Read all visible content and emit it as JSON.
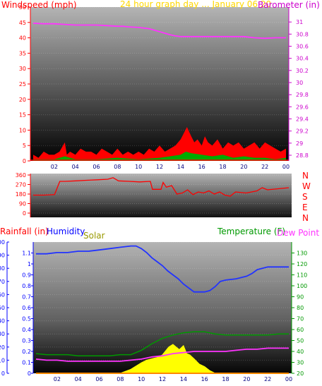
{
  "colors": {
    "wind": "#ff0000",
    "gust_fill": "#ff0000",
    "avg_fill": "#00aa00",
    "baro": "#ff33ff",
    "dir": "#ff0000",
    "humidity": "#2233ff",
    "temperature": "#009900",
    "dewpoint": "#ff33ff",
    "solar": "#ffff00",
    "rainfall": "#ff8800",
    "axis_left": "#ff0000",
    "axis_baro": "#cc00cc",
    "axis_rain": "#0000ff",
    "axis_temp": "#009900",
    "title": "#ffd700"
  },
  "chart_data": [
    {
      "type": "line",
      "title": "24 hour graph day ... January 06 20",
      "ylabel": "Windspeed (mph)",
      "y2label": "Barometer (in)",
      "x_ticks": [
        "02",
        "04",
        "06",
        "08",
        "10",
        "12",
        "14",
        "16",
        "18",
        "20",
        "22",
        "00"
      ],
      "ylim": [
        0,
        50
      ],
      "y_ticks": [
        "0",
        "5",
        "10",
        "15",
        "20",
        "25",
        "30",
        "35",
        "40",
        "45",
        "50"
      ],
      "y2lim": [
        28.8,
        31.2
      ],
      "y2_ticks": [
        "28.8",
        "29",
        "29.2",
        "29.4",
        "29.6",
        "29.8",
        "30",
        "30.2",
        "30.4",
        "30.6",
        "30.8",
        "31"
      ],
      "series": [
        {
          "name": "Barometer",
          "x": [
            0,
            1,
            2,
            3,
            4,
            5,
            6,
            7,
            8,
            8.5,
            9,
            10,
            11,
            12,
            13,
            13.5,
            14,
            15,
            16,
            17,
            18,
            19,
            20,
            21,
            22,
            23,
            24
          ],
          "values": [
            30.98,
            30.97,
            30.97,
            30.96,
            30.95,
            30.95,
            30.95,
            30.94,
            30.93,
            30.93,
            30.92,
            30.91,
            30.89,
            30.84,
            30.79,
            30.77,
            30.76,
            30.76,
            30.76,
            30.76,
            30.76,
            30.76,
            30.76,
            30.74,
            30.73,
            30.74,
            30.74
          ]
        },
        {
          "name": "Gust",
          "x": [
            0,
            0.5,
            1,
            1.5,
            2,
            2.5,
            3,
            3.2,
            3.5,
            4,
            4.5,
            5,
            5.5,
            6,
            6.5,
            7,
            7.5,
            8,
            8.5,
            9,
            9.5,
            10,
            10.5,
            11,
            11.5,
            12,
            12.5,
            13,
            13.5,
            14,
            14.3,
            14.6,
            15,
            15.3,
            15.6,
            16,
            16.3,
            16.6,
            17,
            17.5,
            18,
            18.5,
            19,
            19.5,
            20,
            20.5,
            21,
            21.5,
            22,
            22.5,
            23,
            23.5,
            24
          ],
          "values": [
            2,
            1,
            3,
            2,
            2,
            3,
            6,
            2,
            3,
            2,
            4,
            3,
            3,
            2,
            4,
            3,
            2,
            4,
            2,
            3,
            2,
            3,
            2,
            4,
            3,
            5,
            3,
            4,
            5,
            7,
            9,
            11,
            8,
            6,
            7,
            5,
            8,
            6,
            5,
            7,
            4,
            6,
            5,
            6,
            4,
            5,
            6,
            4,
            6,
            5,
            4,
            3,
            4
          ]
        },
        {
          "name": "Average",
          "x": [
            0,
            2,
            3,
            4,
            6,
            8,
            10,
            12,
            13,
            14,
            14.5,
            15,
            16,
            17,
            18,
            19,
            20,
            21,
            22,
            23,
            24
          ],
          "values": [
            0.5,
            0.5,
            1.5,
            0.5,
            0.5,
            1,
            0.5,
            1,
            1.5,
            2,
            3,
            2.5,
            2,
            1.5,
            2,
            1,
            1.5,
            1,
            1,
            0.5,
            1
          ]
        }
      ]
    },
    {
      "type": "line",
      "ylabel": "",
      "compass": [
        "N",
        "W",
        "S",
        "E",
        "N"
      ],
      "ylim": [
        0,
        360
      ],
      "y_ticks": [
        "0",
        "90",
        "180",
        "270",
        "360"
      ],
      "x_ticks": [
        "02",
        "04",
        "06",
        "08",
        "10",
        "12",
        "14",
        "16",
        "18",
        "20",
        "22",
        "00"
      ],
      "series": [
        {
          "name": "Wind direction",
          "x": [
            0,
            1,
            2,
            2.5,
            3,
            4,
            5,
            6,
            7,
            7.5,
            8,
            9,
            10,
            11,
            11.2,
            12,
            12.2,
            12.5,
            13,
            13.5,
            14,
            14.5,
            15,
            15.5,
            16,
            16.5,
            17,
            17.5,
            18,
            18.5,
            19,
            20,
            21,
            21.5,
            22,
            23,
            24
          ],
          "values": [
            170,
            170,
            175,
            300,
            300,
            305,
            310,
            315,
            320,
            335,
            305,
            300,
            295,
            300,
            225,
            225,
            290,
            245,
            260,
            180,
            190,
            220,
            175,
            200,
            190,
            210,
            180,
            200,
            170,
            160,
            200,
            190,
            210,
            240,
            220,
            230,
            240
          ]
        }
      ]
    },
    {
      "type": "line",
      "ylabel": "Rainfall (in)",
      "ylabel2": "Humidity",
      "ylabel3": "Solar",
      "y2label": "Temperature (F)",
      "y2label2": "Dew Point (",
      "x_ticks": [
        "02",
        "04",
        "06",
        "08",
        "10",
        "12",
        "14",
        "16",
        "18",
        "20",
        "22",
        "00"
      ],
      "hum_lim": [
        0,
        100
      ],
      "hum_ticks": [
        "0",
        "10",
        "20",
        "30",
        "40",
        "50",
        "60",
        "70",
        "80",
        "90",
        "100"
      ],
      "rain_lim": [
        0,
        1.2
      ],
      "rain_ticks": [
        "0",
        "0.1",
        "0.2",
        "0.3",
        "0.4",
        "0.5",
        "0.6",
        "0.7",
        "0.8",
        "0.9",
        "1",
        "1.1"
      ],
      "temp_lim": [
        20,
        140
      ],
      "temp_ticks": [
        "20",
        "30",
        "40",
        "50",
        "60",
        "70",
        "80",
        "90",
        "100",
        "110",
        "120",
        "130"
      ],
      "series": [
        {
          "name": "Humidity",
          "x": [
            0,
            1,
            2,
            3,
            4,
            5,
            6,
            7,
            8,
            9,
            9.5,
            10,
            10.5,
            11,
            11.5,
            12,
            12.5,
            13,
            13.5,
            14,
            14.5,
            15,
            15.5,
            16,
            16.5,
            17,
            17.5,
            18,
            19,
            20,
            20.5,
            21,
            22,
            23,
            24
          ],
          "values": [
            91,
            91,
            92,
            92,
            93,
            93,
            94,
            95,
            96,
            97,
            97,
            95,
            92,
            88,
            85,
            82,
            78,
            75,
            72,
            68,
            65,
            62,
            62,
            62,
            63,
            66,
            70,
            71,
            72,
            74,
            76,
            79,
            81,
            81,
            81
          ]
        },
        {
          "name": "Temperature",
          "x": [
            0,
            1,
            2,
            3,
            4,
            5,
            6,
            7,
            8,
            9,
            10,
            11,
            12,
            13,
            14,
            15,
            16,
            17,
            18,
            19,
            20,
            21,
            22,
            23,
            24
          ],
          "values": [
            38,
            37,
            37,
            37,
            36,
            36,
            36,
            36,
            37,
            37,
            41,
            47,
            52,
            55,
            57,
            58,
            58,
            56,
            55,
            55,
            55,
            55,
            55,
            56,
            56
          ]
        },
        {
          "name": "Dew Point",
          "x": [
            0,
            1,
            2,
            3,
            4,
            5,
            6,
            7,
            8,
            9,
            10,
            11,
            12,
            13,
            14,
            15,
            16,
            17,
            18,
            19,
            20,
            21,
            22,
            23,
            24
          ],
          "values": [
            33,
            32,
            32,
            31,
            31,
            31,
            31,
            31,
            31,
            32,
            33,
            35,
            36,
            38,
            39,
            40,
            40,
            40,
            40,
            41,
            42,
            42,
            43,
            43,
            43
          ]
        },
        {
          "name": "Solar",
          "x": [
            0,
            7.5,
            8,
            9,
            10,
            10.5,
            11,
            11.5,
            12,
            12.3,
            12.6,
            13,
            13.3,
            13.6,
            14,
            14.3,
            14.6,
            15,
            15.5,
            16,
            16.5,
            17,
            24
          ],
          "values": [
            0,
            0,
            0,
            3,
            8,
            10,
            11,
            12,
            14,
            17,
            20,
            22,
            20,
            18,
            21,
            15,
            14,
            11,
            7,
            5,
            2,
            0,
            0
          ]
        },
        {
          "name": "Rainfall",
          "x": [
            0,
            24
          ],
          "values": [
            0,
            0
          ]
        }
      ]
    }
  ]
}
